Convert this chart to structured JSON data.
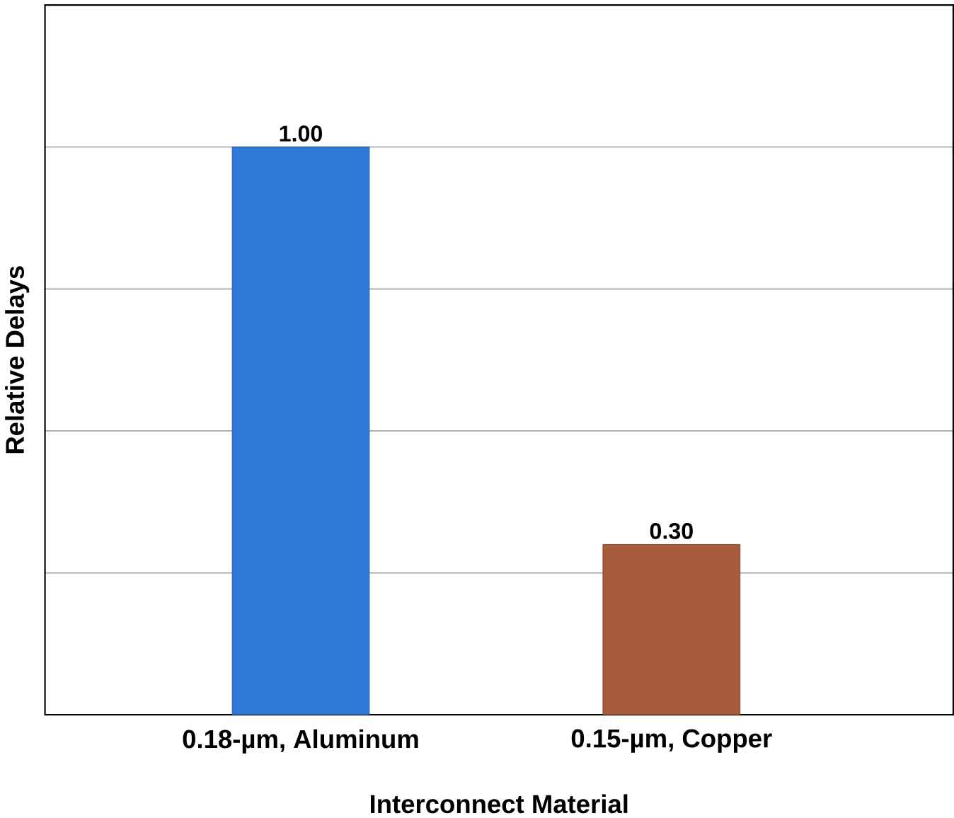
{
  "chart_data": {
    "type": "bar",
    "xlabel": "Interconnect Material",
    "ylabel": "Relative Delays",
    "categories": [
      "0.18-µm, Aluminum",
      "0.15-µm, Copper"
    ],
    "values": [
      1.0,
      0.3
    ],
    "value_labels": [
      "1.00",
      "0.30"
    ],
    "colors": [
      "#2f78d8",
      "#a85c3c"
    ],
    "ylim": [
      0,
      1.25
    ],
    "yticks": [
      {
        "value": 0,
        "label": null
      },
      {
        "value": 0.25,
        "label": null
      },
      {
        "value": 0.5,
        "label": null
      },
      {
        "value": 0.75,
        "label": null
      },
      {
        "value": 1.0,
        "label": null
      },
      {
        "value": 1.25,
        "label": null
      }
    ],
    "grid": "y",
    "tick_labels": "x"
  }
}
